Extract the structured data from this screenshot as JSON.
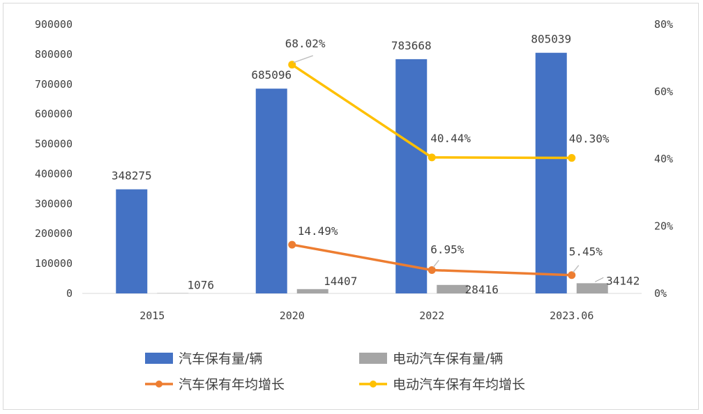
{
  "chart_data": {
    "type": "bar",
    "categories": [
      "2015",
      "2020",
      "2022",
      "2023.06"
    ],
    "y_left": {
      "min": 0,
      "max": 900000,
      "ticks": [
        "0",
        "100000",
        "200000",
        "300000",
        "400000",
        "500000",
        "600000",
        "700000",
        "800000",
        "900000"
      ]
    },
    "y_right": {
      "min": 0,
      "max": 0.8,
      "ticks": [
        "0%",
        "20%",
        "40%",
        "60%",
        "80%"
      ]
    },
    "series": [
      {
        "name": "汽车保有量/辆",
        "type": "bar",
        "axis": "left",
        "color": "#4472c4",
        "values": [
          348275,
          685096,
          783668,
          805039
        ],
        "labels": [
          "348275",
          "685096",
          "783668",
          "805039"
        ]
      },
      {
        "name": "电动汽车保有量/辆",
        "type": "bar",
        "axis": "left",
        "color": "#a5a5a5",
        "values": [
          1076,
          14407,
          28416,
          34142
        ],
        "labels": [
          "1076",
          "14407",
          "28416",
          "34142"
        ]
      },
      {
        "name": "汽车保有年均增长",
        "type": "line",
        "axis": "right",
        "color": "#ed7d31",
        "values": [
          null,
          0.1449,
          0.0695,
          0.0545
        ],
        "labels": [
          "",
          "14.49%",
          "6.95%",
          "5.45%"
        ]
      },
      {
        "name": "电动汽车保有年均增长",
        "type": "line",
        "axis": "right",
        "color": "#ffc000",
        "values": [
          null,
          0.6802,
          0.4044,
          0.403
        ],
        "labels": [
          "",
          "68.02%",
          "40.44%",
          "40.30%"
        ]
      }
    ],
    "legend_position": "bottom",
    "grid": false
  }
}
